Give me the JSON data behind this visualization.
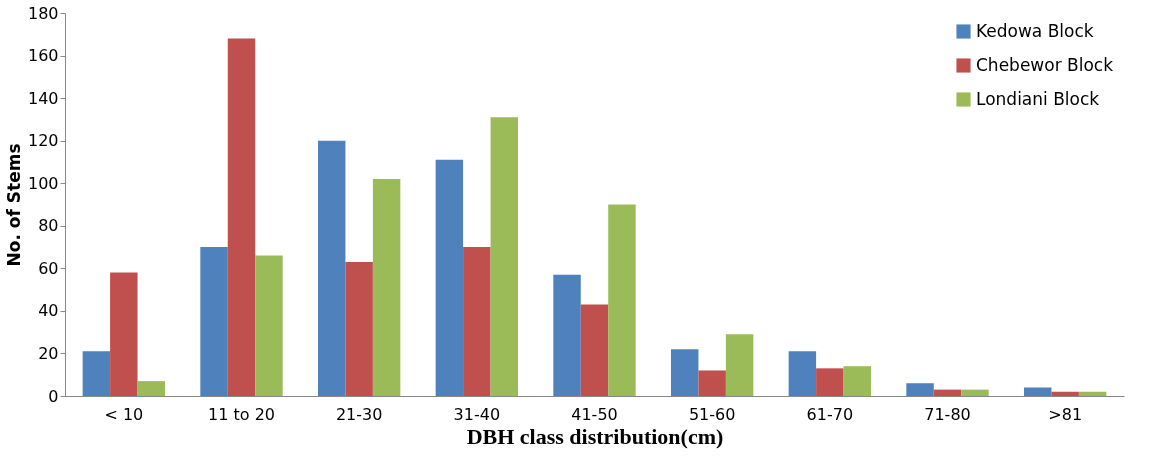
{
  "chart_data": {
    "type": "bar",
    "xlabel": "DBH class distribution(cm)",
    "ylabel": "No. of Stems",
    "categories": [
      "< 10",
      "11 to 20",
      "21-30",
      "31-40",
      "41-50",
      "51-60",
      "61-70",
      "71-80",
      ">81"
    ],
    "series": [
      {
        "name": "Kedowa Block",
        "color": "#4f81bd",
        "values": [
          21,
          70,
          120,
          111,
          57,
          22,
          21,
          6,
          4
        ]
      },
      {
        "name": "Chebewor Block",
        "color": "#c0504d",
        "values": [
          58,
          168,
          63,
          70,
          43,
          12,
          13,
          3,
          2
        ]
      },
      {
        "name": "Londiani Block",
        "color": "#9bbb59",
        "values": [
          7,
          66,
          102,
          131,
          90,
          29,
          14,
          3,
          2
        ]
      }
    ],
    "ylim": [
      0,
      180
    ],
    "yticks": [
      0,
      20,
      40,
      60,
      80,
      100,
      120,
      140,
      160,
      180
    ],
    "grid": false,
    "legend": "top right"
  }
}
